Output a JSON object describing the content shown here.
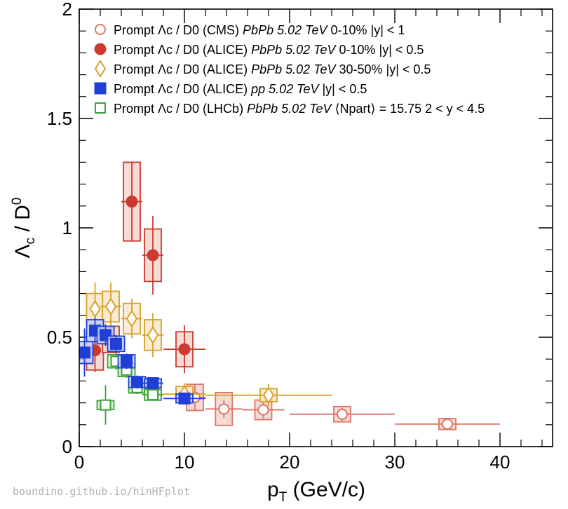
{
  "chart_data": {
    "type": "scatter",
    "xlabel": "p_T (GeV/c)",
    "ylabel": "Λc / D0",
    "xlim": [
      0,
      45
    ],
    "ylim": [
      0,
      2
    ],
    "x_ticks": [
      0,
      10,
      20,
      30,
      40
    ],
    "y_ticks": [
      0,
      0.5,
      1,
      1.5,
      2
    ],
    "x_tick_labels": [
      "0",
      "10",
      "20",
      "30",
      "40"
    ],
    "y_tick_labels": [
      "0",
      "0.5",
      "1",
      "1.5",
      "2"
    ],
    "legend_placement": "top-left",
    "series": [
      {
        "name": "CMS PbPb 0-10%",
        "legend": [
          "Prompt Λc / D0 (CMS) ",
          "PbPb 5.02 TeV",
          " 0-10% |y| < 1"
        ],
        "marker": "open-circle",
        "color": "#de7466",
        "fill": "#f5d3cf",
        "points": [
          {
            "x": 11,
            "y": 0.225,
            "xerr_lo": 1,
            "xerr_hi": 1,
            "stat": 0.06,
            "syst": 0.06
          },
          {
            "x": 13.75,
            "y": 0.172,
            "xerr_lo": 1.75,
            "xerr_hi": 1.75,
            "stat": 0.04,
            "syst": 0.075
          },
          {
            "x": 17.5,
            "y": 0.168,
            "xerr_lo": 2,
            "xerr_hi": 2,
            "stat": 0.04,
            "syst": 0.045
          },
          {
            "x": 25,
            "y": 0.148,
            "xerr_lo": 5,
            "xerr_hi": 5,
            "stat": 0.03,
            "syst": 0.035
          },
          {
            "x": 35,
            "y": 0.103,
            "xerr_lo": 5,
            "xerr_hi": 5,
            "stat": 0.02,
            "syst": 0.025
          }
        ]
      },
      {
        "name": "ALICE PbPb 0-10%",
        "legend": [
          "Prompt Λc / D0 (ALICE) ",
          "PbPb 5.02 TeV",
          " 0-10% |y| < 0.5"
        ],
        "marker": "filled-circle",
        "color": "#cc3a2f",
        "fill": "#f5d3cf",
        "points": [
          {
            "x": 1.5,
            "y": 0.44,
            "xerr_lo": 0.5,
            "xerr_hi": 0.5,
            "stat": 0.1,
            "syst": 0.09
          },
          {
            "x": 3,
            "y": 0.49,
            "xerr_lo": 1,
            "xerr_hi": 1,
            "stat": 0.06,
            "syst": 0.06
          },
          {
            "x": 5,
            "y": 1.12,
            "xerr_lo": 1,
            "xerr_hi": 1,
            "stat": 0.18,
            "syst": 0.18
          },
          {
            "x": 7,
            "y": 0.875,
            "xerr_lo": 1,
            "xerr_hi": 1,
            "stat": 0.18,
            "syst": 0.12
          },
          {
            "x": 10,
            "y": 0.445,
            "xerr_lo": 2,
            "xerr_hi": 2,
            "stat": 0.11,
            "syst": 0.08
          }
        ]
      },
      {
        "name": "ALICE PbPb 30-50%",
        "legend": [
          "Prompt Λc / D0 (ALICE) ",
          "PbPb 5.02 TeV",
          " 30-50% |y| < 0.5"
        ],
        "marker": "open-diamond",
        "color": "#d6a02a",
        "fill": "#fbe8cc",
        "points": [
          {
            "x": 1.5,
            "y": 0.63,
            "xerr_lo": 0.5,
            "xerr_hi": 0.5,
            "stat": 0.12,
            "syst": 0.07
          },
          {
            "x": 3,
            "y": 0.64,
            "xerr_lo": 1,
            "xerr_hi": 1,
            "stat": 0.11,
            "syst": 0.07
          },
          {
            "x": 5,
            "y": 0.585,
            "xerr_lo": 1,
            "xerr_hi": 1,
            "stat": 0.09,
            "syst": 0.07
          },
          {
            "x": 7,
            "y": 0.51,
            "xerr_lo": 1,
            "xerr_hi": 1,
            "stat": 0.1,
            "syst": 0.07
          },
          {
            "x": 10,
            "y": 0.24,
            "xerr_lo": 2,
            "xerr_hi": 2,
            "stat": 0.05,
            "syst": 0.035
          },
          {
            "x": 18,
            "y": 0.235,
            "xerr_lo": 6,
            "xerr_hi": 6,
            "stat": 0.05,
            "syst": 0.03
          }
        ]
      },
      {
        "name": "ALICE pp",
        "legend": [
          "Prompt Λc / D0 (ALICE) ",
          "pp 5.02 TeV",
          " |y| < 0.5"
        ],
        "marker": "filled-square",
        "color": "#1f3fd6",
        "fill": "#c7d0f5",
        "points": [
          {
            "x": 0.5,
            "y": 0.43,
            "xerr_lo": 0.5,
            "xerr_hi": 0.5,
            "stat": 0.11,
            "syst": 0.05
          },
          {
            "x": 1.5,
            "y": 0.53,
            "xerr_lo": 0.5,
            "xerr_hi": 0.5,
            "stat": 0.06,
            "syst": 0.05
          },
          {
            "x": 2.5,
            "y": 0.51,
            "xerr_lo": 0.5,
            "xerr_hi": 0.5,
            "stat": 0.05,
            "syst": 0.04
          },
          {
            "x": 3.5,
            "y": 0.47,
            "xerr_lo": 0.5,
            "xerr_hi": 0.5,
            "stat": 0.04,
            "syst": 0.035
          },
          {
            "x": 4.5,
            "y": 0.39,
            "xerr_lo": 0.5,
            "xerr_hi": 0.5,
            "stat": 0.035,
            "syst": 0.03
          },
          {
            "x": 5.5,
            "y": 0.295,
            "xerr_lo": 0.5,
            "xerr_hi": 0.5,
            "stat": 0.03,
            "syst": 0.025
          },
          {
            "x": 7,
            "y": 0.29,
            "xerr_lo": 1,
            "xerr_hi": 1,
            "stat": 0.025,
            "syst": 0.02
          },
          {
            "x": 10,
            "y": 0.22,
            "xerr_lo": 2,
            "xerr_hi": 2,
            "stat": 0.02,
            "syst": 0.02
          }
        ]
      },
      {
        "name": "LHCb PbPb",
        "legend": [
          "Prompt Λc / D0 (LHCb) ",
          "PbPb 5.02 TeV",
          " ⟨Npart⟩ = 15.75 2 < y < 4.5"
        ],
        "marker": "open-square",
        "color": "#3aa336",
        "fill": "#d4ecd2",
        "points": [
          {
            "x": 2.5,
            "y": 0.19,
            "xerr_lo": 0.5,
            "xerr_hi": 0.5,
            "stat": 0.09,
            "syst": 0.02
          },
          {
            "x": 3.5,
            "y": 0.39,
            "xerr_lo": 0.5,
            "xerr_hi": 0.5,
            "stat": 0.04,
            "syst": 0.03
          },
          {
            "x": 4.5,
            "y": 0.35,
            "xerr_lo": 0.5,
            "xerr_hi": 0.5,
            "stat": 0.035,
            "syst": 0.03
          },
          {
            "x": 5.5,
            "y": 0.27,
            "xerr_lo": 0.5,
            "xerr_hi": 0.5,
            "stat": 0.03,
            "syst": 0.025
          },
          {
            "x": 7,
            "y": 0.237,
            "xerr_lo": 1,
            "xerr_hi": 1,
            "stat": 0.025,
            "syst": 0.025
          }
        ]
      }
    ]
  },
  "watermark": "boundino.github.io/hinHFplot"
}
